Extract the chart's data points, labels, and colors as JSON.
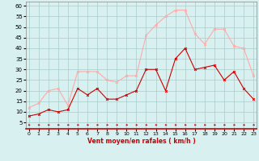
{
  "hours": [
    0,
    1,
    2,
    3,
    4,
    5,
    6,
    7,
    8,
    9,
    10,
    11,
    12,
    13,
    14,
    15,
    16,
    17,
    18,
    19,
    20,
    21,
    22,
    23
  ],
  "vent_moyen": [
    8,
    9,
    11,
    10,
    11,
    21,
    18,
    21,
    16,
    16,
    18,
    20,
    30,
    30,
    20,
    35,
    40,
    30,
    31,
    32,
    25,
    29,
    21,
    16
  ],
  "rafales": [
    12,
    14,
    20,
    21,
    13,
    29,
    29,
    29,
    25,
    24,
    27,
    27,
    46,
    51,
    55,
    58,
    58,
    47,
    42,
    49,
    49,
    41,
    40,
    27
  ],
  "color_moyen": "#cc0000",
  "color_rafales": "#ffaaaa",
  "bg_color": "#d8f0f0",
  "grid_color": "#aacccc",
  "xlabel": "Vent moyen/en rafales ( km/h )",
  "ylabel_ticks": [
    5,
    10,
    15,
    20,
    25,
    30,
    35,
    40,
    45,
    50,
    55,
    60
  ],
  "ylim": [
    2,
    62
  ],
  "xlim": [
    -0.3,
    23.3
  ]
}
